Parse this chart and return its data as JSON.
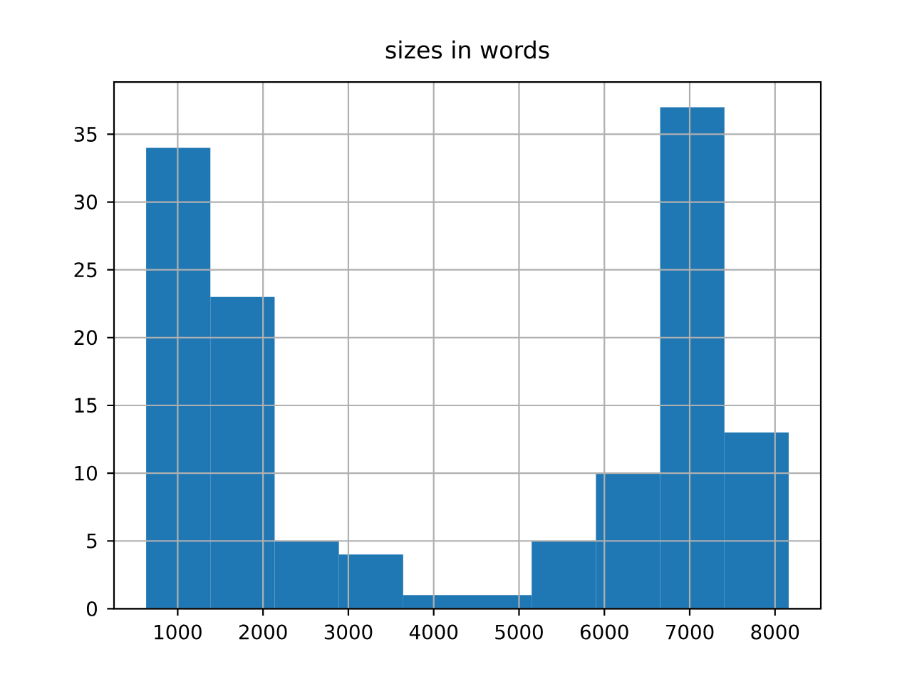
{
  "chart_data": {
    "type": "histogram",
    "title": "sizes in words",
    "bins": [
      630,
      1383,
      2136,
      2889,
      3642,
      4395,
      5148,
      5901,
      6654,
      7407,
      8160
    ],
    "values": [
      34,
      23,
      5,
      4,
      1,
      1,
      5,
      10,
      37,
      13
    ],
    "color": "#1f77b4",
    "xlim": [
      253.5,
      8536.5
    ],
    "ylim": [
      0,
      38.85
    ],
    "xticks": [
      1000,
      2000,
      3000,
      4000,
      5000,
      6000,
      7000,
      8000
    ],
    "yticks": [
      0,
      5,
      10,
      15,
      20,
      25,
      30,
      35
    ],
    "grid": true
  }
}
